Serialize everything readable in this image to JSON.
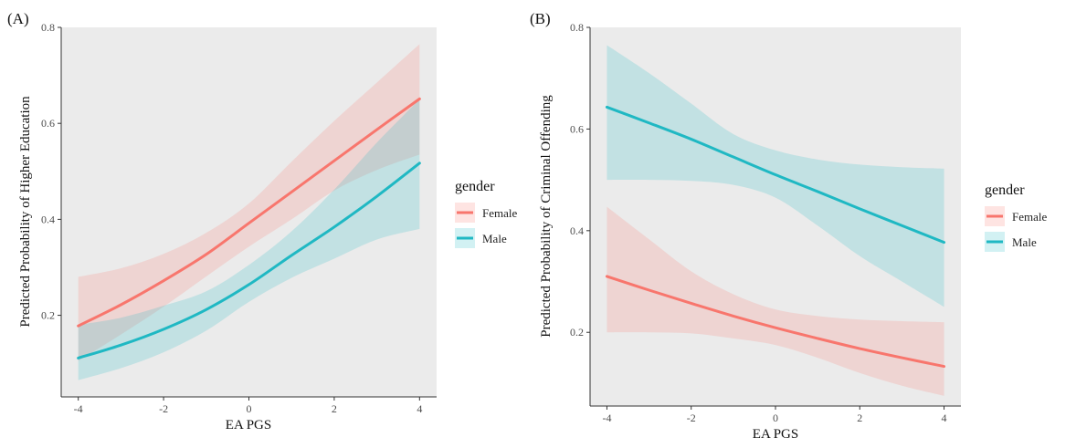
{
  "colors": {
    "female": "#F8766D",
    "male": "#1FB8C3",
    "panel_bg": "#EBEBEB"
  },
  "legend": {
    "title": "gender",
    "entries": [
      "Female",
      "Male"
    ]
  },
  "chart_data": [
    {
      "panel_label": "(A)",
      "type": "line",
      "xlabel": "EA PGS",
      "ylabel": "Predicted Probability of Higher Education",
      "xlim": [
        -4.4,
        4.4
      ],
      "ylim": [
        0.03,
        0.8
      ],
      "xticks": [
        -4,
        -2,
        0,
        2,
        4
      ],
      "xtick_labels": [
        "-4",
        "-2",
        "0",
        "2",
        "4"
      ],
      "yticks": [
        0.2,
        0.4,
        0.6,
        0.8
      ],
      "ytick_labels": [
        "0.2",
        "0.4",
        "0.6",
        "0.8"
      ],
      "grid": false,
      "x": [
        -4,
        -3,
        -2,
        -1,
        0,
        1,
        2,
        3,
        4
      ],
      "series": [
        {
          "name": "Female",
          "values": [
            0.178,
            0.222,
            0.272,
            0.327,
            0.392,
            0.457,
            0.522,
            0.587,
            0.651
          ],
          "lower": [
            0.105,
            0.16,
            0.218,
            0.281,
            0.343,
            0.4,
            0.46,
            0.503,
            0.535
          ],
          "upper": [
            0.28,
            0.298,
            0.328,
            0.372,
            0.433,
            0.52,
            0.605,
            0.685,
            0.765
          ]
        },
        {
          "name": "Male",
          "values": [
            0.111,
            0.138,
            0.171,
            0.212,
            0.264,
            0.325,
            0.384,
            0.448,
            0.517
          ],
          "lower": [
            0.065,
            0.09,
            0.123,
            0.168,
            0.228,
            0.278,
            0.318,
            0.358,
            0.38
          ],
          "upper": [
            0.18,
            0.195,
            0.22,
            0.25,
            0.305,
            0.375,
            0.462,
            0.56,
            0.65
          ]
        }
      ]
    },
    {
      "panel_label": "(B)",
      "type": "line",
      "xlabel": "EA PGS",
      "ylabel": "Predicted Probability of Criminal Offending",
      "xlim": [
        -4.4,
        4.4
      ],
      "ylim": [
        0.055,
        0.8
      ],
      "xticks": [
        -4,
        -2,
        0,
        2,
        4
      ],
      "xtick_labels": [
        "-4",
        "-2",
        "0",
        "2",
        "4"
      ],
      "yticks": [
        0.2,
        0.4,
        0.6,
        0.8
      ],
      "ytick_labels": [
        "0.2",
        "0.4",
        "0.6",
        "0.8"
      ],
      "grid": false,
      "x": [
        -4,
        -3,
        -2,
        -1,
        0,
        1,
        2,
        3,
        4
      ],
      "series": [
        {
          "name": "Female",
          "values": [
            0.31,
            0.283,
            0.257,
            0.232,
            0.209,
            0.188,
            0.168,
            0.15,
            0.133
          ],
          "lower": [
            0.2,
            0.2,
            0.198,
            0.188,
            0.175,
            0.15,
            0.12,
            0.095,
            0.075
          ],
          "upper": [
            0.447,
            0.383,
            0.32,
            0.275,
            0.245,
            0.232,
            0.225,
            0.222,
            0.22
          ]
        },
        {
          "name": "Male",
          "values": [
            0.643,
            0.612,
            0.58,
            0.545,
            0.51,
            0.477,
            0.443,
            0.41,
            0.377
          ],
          "lower": [
            0.5,
            0.5,
            0.498,
            0.49,
            0.465,
            0.41,
            0.35,
            0.3,
            0.25
          ],
          "upper": [
            0.765,
            0.71,
            0.65,
            0.59,
            0.558,
            0.54,
            0.53,
            0.525,
            0.522
          ]
        }
      ]
    }
  ]
}
